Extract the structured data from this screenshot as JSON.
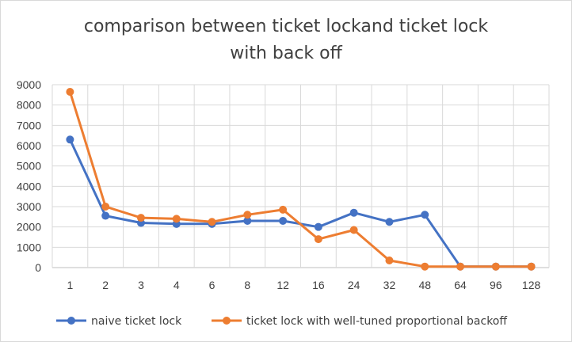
{
  "chart_data": {
    "type": "line",
    "title_line1": "comparison between ticket lockand ticket lock",
    "title_line2": "with back off",
    "xlabel": "",
    "ylabel": "",
    "categories": [
      "1",
      "2",
      "3",
      "4",
      "6",
      "8",
      "12",
      "16",
      "24",
      "32",
      "48",
      "64",
      "96",
      "128"
    ],
    "ylim": [
      0,
      9000
    ],
    "yticks": [
      0,
      1000,
      2000,
      3000,
      4000,
      5000,
      6000,
      7000,
      8000,
      9000
    ],
    "grid": true,
    "legend_position": "bottom",
    "series": [
      {
        "name": "naive ticket lock",
        "color": "#4472c4",
        "values": [
          6300,
          2550,
          2200,
          2150,
          2150,
          2300,
          2300,
          2000,
          2700,
          2250,
          2600,
          50,
          50,
          50
        ]
      },
      {
        "name": "ticket lock with well-tuned proportional backoff",
        "color": "#ed7d31",
        "values": [
          8650,
          3000,
          2450,
          2400,
          2250,
          2600,
          2850,
          1400,
          1850,
          350,
          50,
          50,
          50,
          50
        ]
      }
    ]
  }
}
